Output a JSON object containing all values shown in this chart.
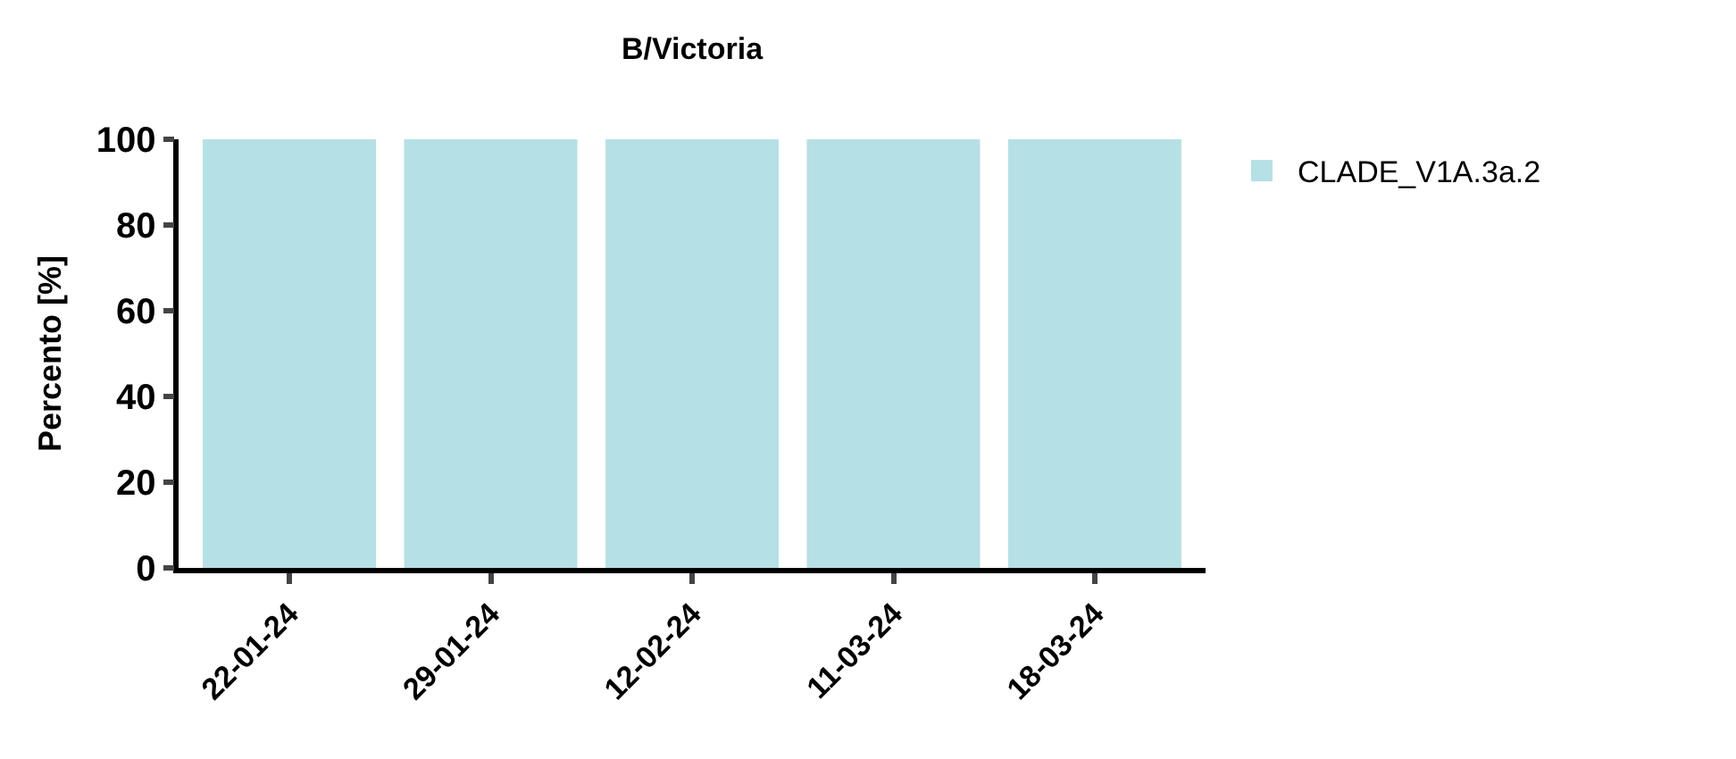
{
  "chart_data": {
    "type": "bar",
    "title": "B/Victoria",
    "ylabel": "Percento [%]",
    "categories": [
      "22-01-24",
      "29-01-24",
      "12-02-24",
      "11-03-24",
      "18-03-24"
    ],
    "series": [
      {
        "name": "CLADE_V1A.3a.2",
        "color": "#b5e0e5",
        "values": [
          100,
          100,
          100,
          100,
          100
        ]
      }
    ],
    "ylim": [
      0,
      100
    ],
    "yticks": [
      0,
      20,
      40,
      60,
      80,
      100
    ],
    "legend": "top right"
  }
}
